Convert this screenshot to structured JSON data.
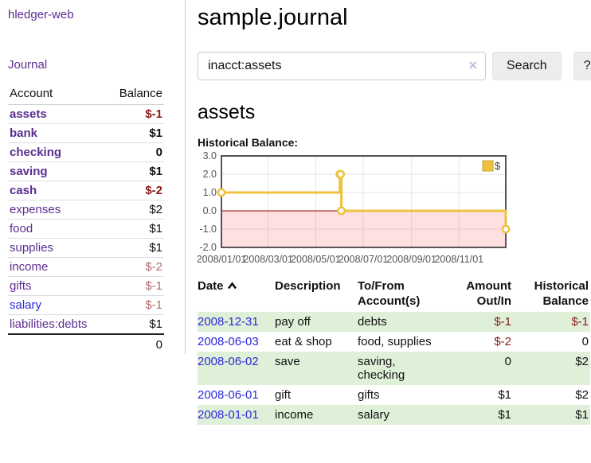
{
  "sidebar": {
    "brand": "hledger-web",
    "journal_link": "Journal",
    "account_header": "Account",
    "balance_header": "Balance",
    "accounts": [
      {
        "name": "assets",
        "balance": "$-1"
      },
      {
        "name": "bank",
        "balance": "$1"
      },
      {
        "name": "checking",
        "balance": "0"
      },
      {
        "name": "saving",
        "balance": "$1"
      },
      {
        "name": "cash",
        "balance": "$-2"
      },
      {
        "name": "expenses",
        "balance": "$2"
      },
      {
        "name": "food",
        "balance": "$1"
      },
      {
        "name": "supplies",
        "balance": "$1"
      },
      {
        "name": "income",
        "balance": "$-2"
      },
      {
        "name": "gifts",
        "balance": "$-1"
      },
      {
        "name": "salary",
        "balance": "$-1"
      },
      {
        "name": "liabilities:debts",
        "balance": "$1"
      }
    ],
    "total": "0"
  },
  "header": {
    "title": "sample.journal"
  },
  "search": {
    "value": "inacct:assets",
    "clear_icon": "×",
    "button_label": "Search",
    "help_label": "?"
  },
  "account_page": {
    "heading": "assets",
    "chart_label": "Historical Balance:"
  },
  "chart_data": {
    "type": "line",
    "style": "step",
    "title": "Historical Balance",
    "series": [
      {
        "name": "$",
        "x": [
          "2008-01-01",
          "2008-06-01",
          "2008-06-02",
          "2008-06-03",
          "2008-12-31"
        ],
        "y": [
          1,
          2,
          2,
          0,
          -1
        ],
        "color": "#edc240"
      }
    ],
    "x_ticks": [
      "2008/01/01",
      "2008/03/01",
      "2008/05/01",
      "2008/07/01",
      "2008/09/01",
      "2008/11/01"
    ],
    "y_ticks": [
      3.0,
      2.0,
      1.0,
      0.0,
      -1.0,
      -2.0
    ],
    "xlim": [
      "2008-01-01",
      "2008-12-31"
    ],
    "ylim": [
      -2,
      3
    ],
    "grid": true,
    "legend": {
      "label": "$",
      "position": "top-right"
    },
    "zero_line_color": "#8b0000",
    "negative_region_color": "rgba(255,0,0,0.12)",
    "tick_label_color": "#545454",
    "border_color": "#545454"
  },
  "register": {
    "columns": {
      "date": "Date",
      "description": "Description",
      "accounts": "To/From Account(s)",
      "amount": "Amount Out/In",
      "balance": "Historical Balance"
    },
    "rows": [
      {
        "date": "2008-12-31",
        "description": "pay off",
        "accounts": "debts",
        "amount": "$-1",
        "balance": "$-1"
      },
      {
        "date": "2008-06-03",
        "description": "eat & shop",
        "accounts": "food, supplies",
        "amount": "$-2",
        "balance": "0"
      },
      {
        "date": "2008-06-02",
        "description": "save",
        "accounts": "saving, checking",
        "amount": "0",
        "balance": "$2"
      },
      {
        "date": "2008-06-01",
        "description": "gift",
        "accounts": "gifts",
        "amount": "$1",
        "balance": "$2"
      },
      {
        "date": "2008-01-01",
        "description": "income",
        "accounts": "salary",
        "amount": "$1",
        "balance": "$1"
      }
    ]
  },
  "colors": {
    "accent_purple": "#5b2d90",
    "link_blue": "#2a2ad8",
    "negative_dark": "#8b1a1a",
    "negative_soft": "#b36b6b",
    "row_green": "#dff0d8",
    "chart_line": "#edc240"
  }
}
